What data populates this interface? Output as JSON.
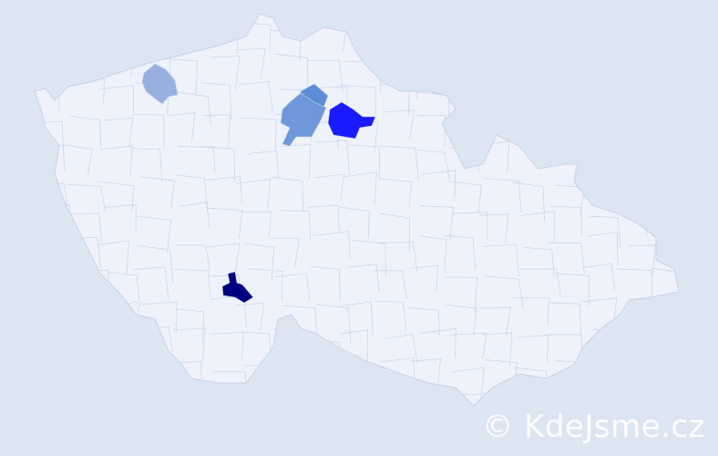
{
  "colors": {
    "background": "#dce6f3",
    "country_fill": "#eef2fa",
    "border": "#c8d2ea",
    "level_1": "#97b0e0",
    "level_2": "#6f98da",
    "level_3": "#5d8cd8",
    "level_4": "#1a1aff",
    "level_5": "#000080"
  },
  "watermark": "© KdeJsme.cz"
}
